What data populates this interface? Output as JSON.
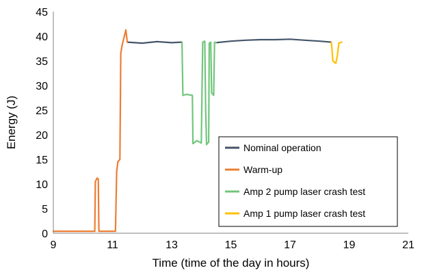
{
  "chart_data": {
    "type": "line",
    "xlabel": "Time (time of the day in hours)",
    "ylabel": "Energy (J)",
    "xlim": [
      9,
      21
    ],
    "ylim": [
      0,
      45
    ],
    "xticks": [
      "9",
      "11",
      "13",
      "15",
      "17",
      "19",
      "21"
    ],
    "yticks": [
      "0",
      "5",
      "10",
      "15",
      "20",
      "25",
      "30",
      "35",
      "40",
      "45"
    ],
    "grid": false,
    "legend_position": "bottom-right",
    "series": [
      {
        "name": "Nominal operation",
        "color": "#44546a",
        "segments": [
          [
            [
              11.5,
              38.8
            ],
            [
              12.0,
              38.6
            ],
            [
              12.5,
              38.9
            ],
            [
              13.0,
              38.7
            ],
            [
              13.35,
              38.8
            ]
          ],
          [
            [
              14.5,
              38.7
            ],
            [
              15.0,
              39.0
            ],
            [
              15.5,
              39.2
            ],
            [
              16.0,
              39.3
            ],
            [
              16.5,
              39.3
            ],
            [
              17.0,
              39.4
            ],
            [
              17.5,
              39.2
            ],
            [
              18.0,
              39.0
            ],
            [
              18.4,
              38.8
            ]
          ]
        ]
      },
      {
        "name": "Warm-up",
        "color": "#ed7d31",
        "segments": [
          [
            [
              9.0,
              0.4
            ],
            [
              9.5,
              0.4
            ],
            [
              10.0,
              0.4
            ],
            [
              10.4,
              0.4
            ],
            [
              10.42,
              10.5
            ],
            [
              10.48,
              11.2
            ],
            [
              10.52,
              11.0
            ],
            [
              10.54,
              0.4
            ],
            [
              10.8,
              0.4
            ],
            [
              11.1,
              0.4
            ],
            [
              11.14,
              12.5
            ],
            [
              11.18,
              14.5
            ],
            [
              11.25,
              15.0
            ],
            [
              11.28,
              36.5
            ],
            [
              11.32,
              38.0
            ],
            [
              11.38,
              39.5
            ],
            [
              11.45,
              41.3
            ],
            [
              11.5,
              38.8
            ]
          ]
        ]
      },
      {
        "name": "Amp 2 pump laser crash test",
        "color": "#70c67b",
        "segments": [
          [
            [
              13.35,
              38.8
            ],
            [
              13.38,
              28.0
            ],
            [
              13.5,
              28.2
            ],
            [
              13.7,
              28.0
            ],
            [
              13.72,
              18.2
            ],
            [
              13.85,
              18.8
            ],
            [
              14.0,
              18.3
            ],
            [
              14.05,
              38.8
            ],
            [
              14.12,
              39.0
            ],
            [
              14.15,
              25.0
            ],
            [
              14.18,
              18.0
            ],
            [
              14.25,
              18.5
            ],
            [
              14.27,
              38.6
            ],
            [
              14.32,
              38.8
            ],
            [
              14.35,
              28.5
            ],
            [
              14.42,
              28.0
            ],
            [
              14.45,
              38.8
            ],
            [
              14.5,
              38.7
            ]
          ]
        ]
      },
      {
        "name": "Amp 1 pump laser crash test",
        "color": "#ffc000",
        "segments": [
          [
            [
              18.4,
              38.8
            ],
            [
              18.45,
              35.0
            ],
            [
              18.55,
              34.5
            ],
            [
              18.6,
              36.0
            ],
            [
              18.65,
              38.6
            ],
            [
              18.75,
              38.8
            ]
          ]
        ]
      }
    ]
  }
}
